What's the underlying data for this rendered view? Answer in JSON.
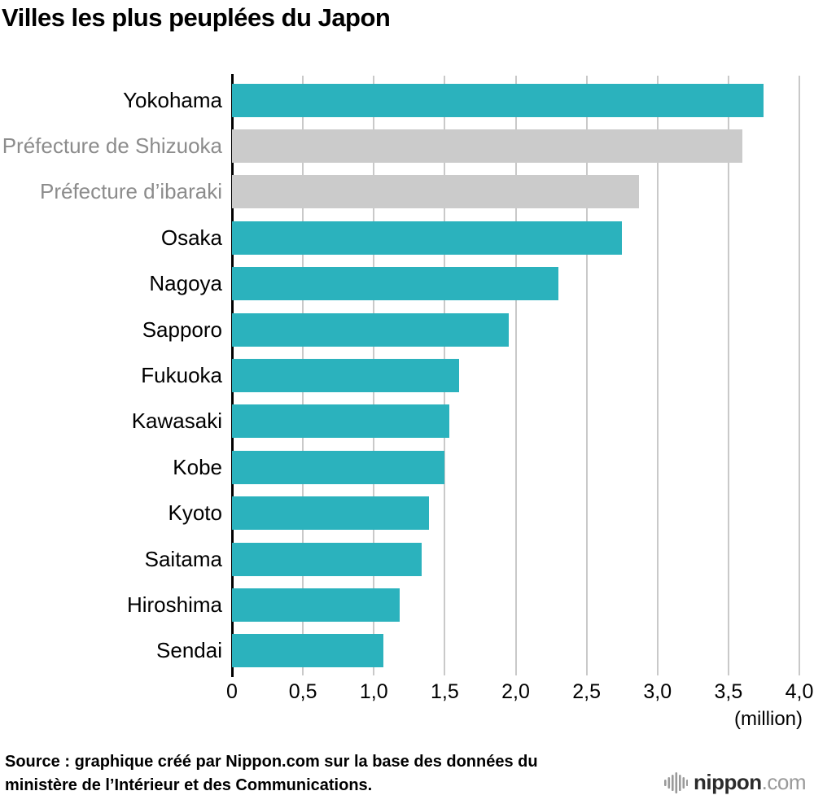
{
  "title": "Villes les plus peuplées du Japon",
  "chart_data": {
    "type": "bar",
    "orientation": "horizontal",
    "title": "Villes les plus peuplées du Japon",
    "categories": [
      "Yokohama",
      "Préfecture de Shizuoka",
      "Préfecture d’ibaraki",
      "Osaka",
      "Nagoya",
      "Sapporo",
      "Fukuoka",
      "Kawasaki",
      "Kobe",
      "Kyoto",
      "Saitama",
      "Hiroshima",
      "Sendai"
    ],
    "values": [
      3.75,
      3.6,
      2.87,
      2.75,
      2.3,
      1.95,
      1.6,
      1.53,
      1.5,
      1.39,
      1.34,
      1.18,
      1.07
    ],
    "types": [
      "city",
      "prefecture",
      "prefecture",
      "city",
      "city",
      "city",
      "city",
      "city",
      "city",
      "city",
      "city",
      "city",
      "city"
    ],
    "bar_colors": {
      "city": "#2bb2bd",
      "prefecture": "#cbcbcb"
    },
    "label_colors": {
      "city": "#000000",
      "prefecture": "#8c8c8c"
    },
    "xlim": [
      0,
      4
    ],
    "grid": true,
    "ticks": [
      {
        "v": 0,
        "label": "0"
      },
      {
        "v": 0.5,
        "label": "0,5"
      },
      {
        "v": 1.0,
        "label": "1,0"
      },
      {
        "v": 1.5,
        "label": "1,5"
      },
      {
        "v": 2.0,
        "label": "2,0"
      },
      {
        "v": 2.5,
        "label": "2,5"
      },
      {
        "v": 3.0,
        "label": "3,0"
      },
      {
        "v": 3.5,
        "label": "3,5"
      },
      {
        "v": 4.0,
        "label": "4,0"
      }
    ],
    "unit_label": "(million)"
  },
  "footer": {
    "source_line1": "Source : graphique créé par Nippon.com sur la base des données du",
    "source_line2": "ministère de l’Intérieur et des Communications.",
    "logo_text": "nippon",
    "logo_suffix": ".com"
  }
}
